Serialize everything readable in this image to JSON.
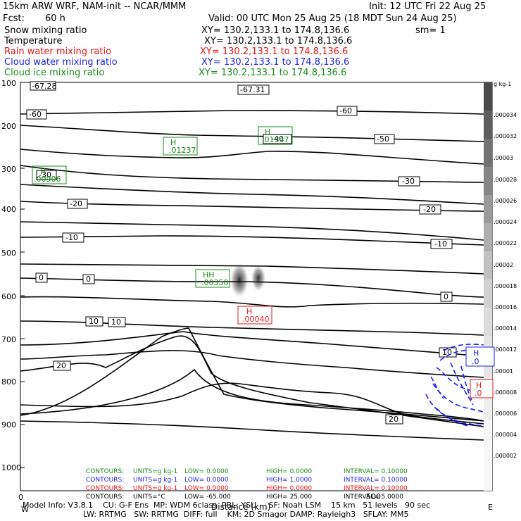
{
  "header": {
    "line1_left": "15km ARW WRF, NAM-init -- NCAR/MMM",
    "line1_right": "Init: 12 UTC Fri 22 Aug 25",
    "fcst_label": "Fcst:",
    "fcst_value": "60 h",
    "valid": "Valid: 00 UTC Mon 25 Aug 25 (18 MDT Sun 24 Aug 25)",
    "fields": [
      {
        "name": "Snow mixing ratio",
        "xy": "XY= 130.2,133.1 to 174.8,136.6",
        "extra": "sm= 1",
        "color": "#000000"
      },
      {
        "name": "Temperature",
        "xy": "XY= 130.2,133.1 to 174.8,136.6",
        "extra": "",
        "color": "#000000"
      },
      {
        "name": "Rain water mixing ratio",
        "xy": "XY= 130.2,133.1 to 174.8,136.6",
        "extra": "",
        "color": "#e8141a"
      },
      {
        "name": "Cloud water mixing ratio",
        "xy": "XY= 130.2,133.1 to 174.8,136.6",
        "extra": "",
        "color": "#1d1df0"
      },
      {
        "name": "Cloud ice mixing ratio",
        "xy": "XY= 130.2,133.1 to 174.8,136.6",
        "extra": "",
        "color": "#1c8a1c"
      }
    ]
  },
  "chart_data": {
    "type": "contour-cross-section",
    "x_axis": {
      "ticks": [
        "0",
        "500"
      ],
      "label": "Distance (km)",
      "left_end": "W",
      "right_end": "E"
    },
    "y_axis": {
      "tick_labels": [
        "100",
        "200",
        "300",
        "400",
        "500",
        "600",
        "700",
        "800",
        "900",
        "1000"
      ],
      "scale": "log-pressure"
    },
    "colorbar": {
      "unit": "g kg-1",
      "labels": [
        ".000034",
        ".000032",
        ".00003",
        ".000028",
        ".000026",
        ".000024",
        ".000022",
        ".00002",
        ".000018",
        ".000016",
        ".000014",
        ".000012",
        ".00001",
        ".000008",
        ".000006",
        ".000004",
        ".000002"
      ]
    },
    "temperature_contours": {
      "color": "#000000",
      "labels": [
        "-67.31",
        "-60",
        "-60",
        "-50",
        "-40",
        "-30",
        "-30",
        "-20",
        "-20",
        "-10",
        "-10",
        "0",
        "0",
        "0",
        "10",
        "10",
        "10",
        "20",
        "20"
      ],
      "corner_label": "-67.28"
    },
    "highs": [
      {
        "mark": "H",
        "value": ".01237",
        "color": "#1c8a1c"
      },
      {
        "mark": "H",
        "value": ".01347",
        "color": "#1c8a1c"
      },
      {
        "mark": "H",
        "value": ".00906",
        "color": "#1c8a1c"
      },
      {
        "mark": "HH",
        "value": ".00350",
        "color": "#1c8a1c"
      },
      {
        "mark": "H",
        "value": ".00040",
        "color": "#e8141a"
      },
      {
        "mark": "H",
        "value": ".0",
        "color": "#1d1df0"
      },
      {
        "mark": "H",
        "value": ".0",
        "color": "#e8141a"
      }
    ],
    "contour_legend": [
      {
        "contours": "CONTOURS:",
        "units": "UNITS=g kg-1",
        "low": "LOW= 0.0000",
        "high": "HIGH= 0.0000",
        "interval": "INTERVAL= 0.10000",
        "color": "#1c8a1c"
      },
      {
        "contours": "CONTOURS:",
        "units": "UNITS=g kg-1",
        "low": "LOW= 0.0000",
        "high": "HIGH= 1.0000",
        "interval": "INTERVAL= 0.10000",
        "color": "#1d1df0"
      },
      {
        "contours": "CONTOURS:",
        "units": "UNITS=g kg-1",
        "low": "LOW= 0.0000",
        "high": "HIGH= 0.0000",
        "interval": "INTERVAL= 0.10000",
        "color": "#e8141a"
      },
      {
        "contours": "CONTOURS:",
        "units": "UNITS=°C",
        "low": "LOW= -65.000",
        "high": "HIGH= 25.000",
        "interval": "INTERVAL= 5.0000",
        "color": "#000000"
      }
    ]
  },
  "footer": {
    "line1": "Model Info: V3.8.1    CU: G-F Ens  MP: WDM 6class  PBL: YSU     SF: Noah LSM    15 km   51 levels   90 sec",
    "line2": "LW: RRTMG   SW: RRTMG  DIFF: full    KM: 2D Smagor DAMP: Rayleigh3   SFLAY: MM5"
  }
}
